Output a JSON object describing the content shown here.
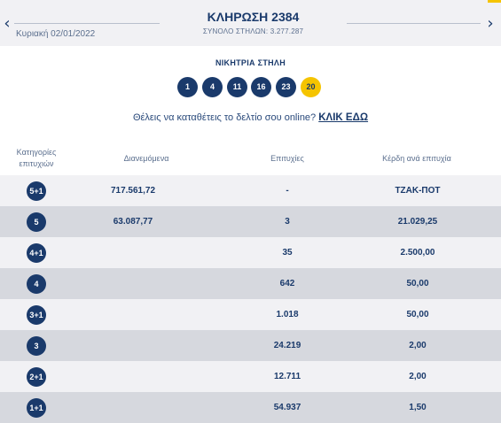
{
  "header": {
    "draw_title": "ΚΛΗΡΩΣΗ 2384",
    "total_columns": "ΣΥΝΟΛΟ ΣΤΗΛΩΝ: 3.277.287",
    "date": "Κυριακή 02/01/2022",
    "prev_icon": "chevron-left-icon",
    "next_icon": "chevron-right-icon",
    "prev_glyph": "‹",
    "next_glyph": "›"
  },
  "winning": {
    "label": "ΝΙΚΗΤΡΙΑ ΣΤΗΛΗ",
    "numbers": [
      "1",
      "4",
      "11",
      "16",
      "23"
    ],
    "joker": "20"
  },
  "promo": {
    "text": "Θέλεις να καταθέτεις το δελτίο σου online?",
    "link": "ΚΛΙΚ ΕΔΩ"
  },
  "table": {
    "headers": {
      "category": "Κατηγορίες επιτυχιών",
      "distributed": "Διανεμόμενα",
      "winners": "Επιτυχίες",
      "prize": "Κέρδη ανά επιτυχία"
    },
    "rows": [
      {
        "category": "5+1",
        "distributed": "717.561,72",
        "winners": "-",
        "prize": "ΤΖΑΚ-ΠΟΤ"
      },
      {
        "category": "5",
        "distributed": "63.087,77",
        "winners": "3",
        "prize": "21.029,25"
      },
      {
        "category": "4+1",
        "distributed": "",
        "winners": "35",
        "prize": "2.500,00"
      },
      {
        "category": "4",
        "distributed": "",
        "winners": "642",
        "prize": "50,00"
      },
      {
        "category": "3+1",
        "distributed": "",
        "winners": "1.018",
        "prize": "50,00"
      },
      {
        "category": "3",
        "distributed": "",
        "winners": "24.219",
        "prize": "2,00"
      },
      {
        "category": "2+1",
        "distributed": "",
        "winners": "12.711",
        "prize": "2,00"
      },
      {
        "category": "1+1",
        "distributed": "",
        "winners": "54.937",
        "prize": "1,50"
      }
    ]
  },
  "colors": {
    "navy": "#1a3a6b",
    "gold": "#f5c400",
    "row_light": "#f1f1f4",
    "row_dark": "#d6d8de"
  }
}
